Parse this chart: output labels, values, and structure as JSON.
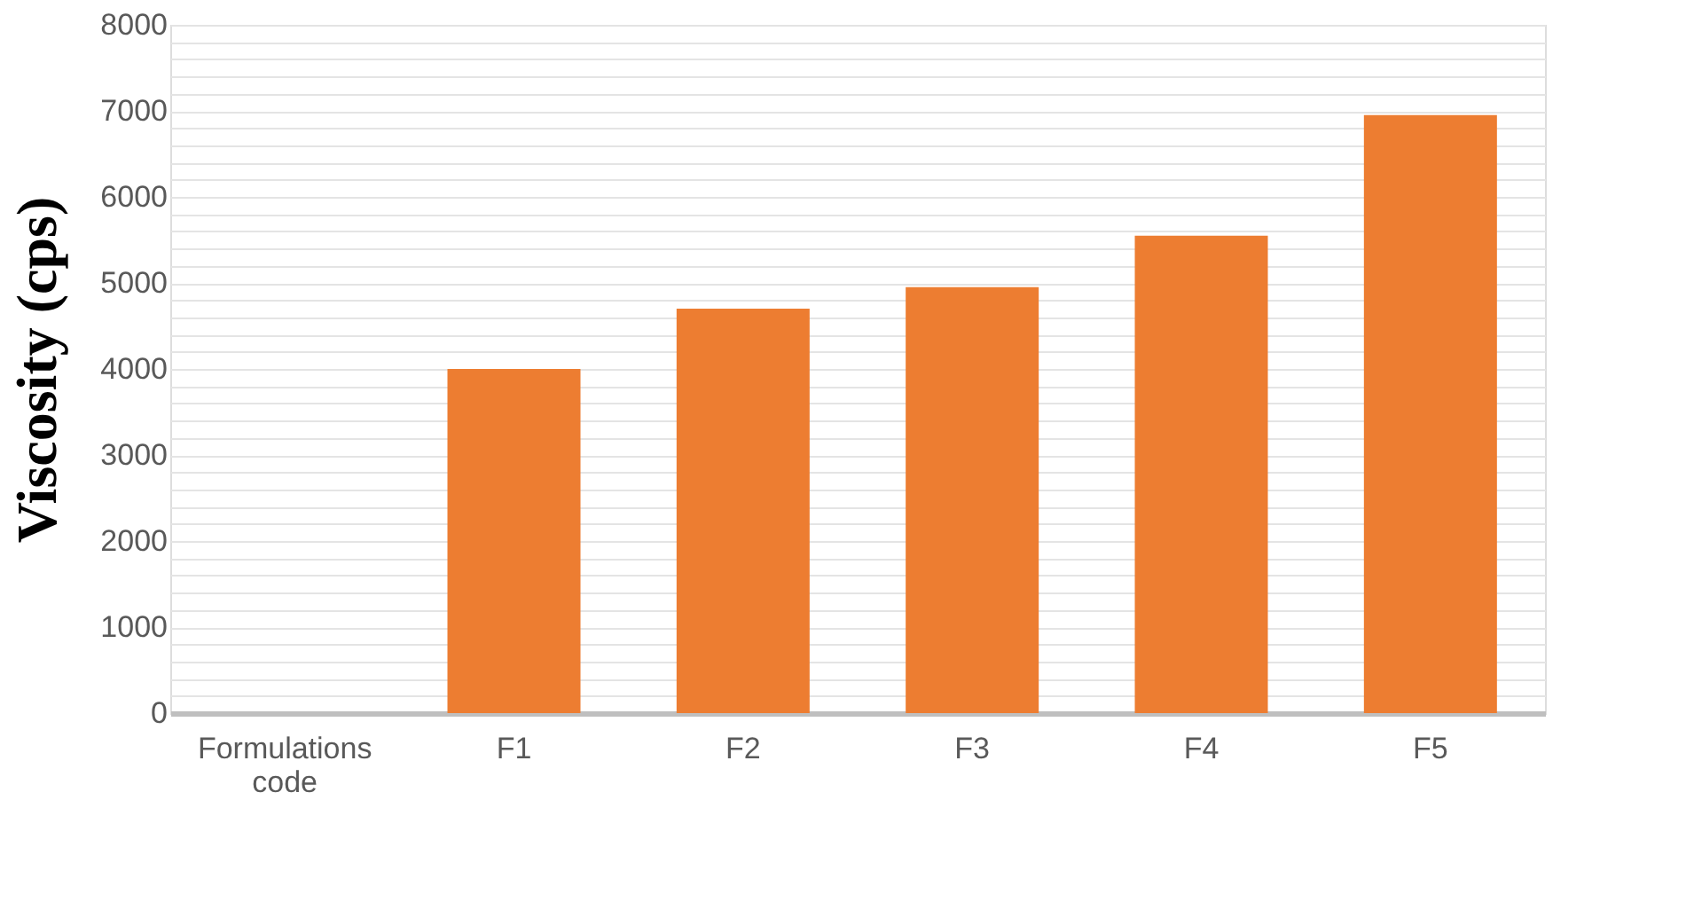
{
  "chart_data": {
    "type": "bar",
    "ylabel": "Viscosity (cps)",
    "categories": [
      "Formulations code",
      "F1",
      "F2",
      "F3",
      "F4",
      "F5"
    ],
    "values": [
      null,
      4000,
      4700,
      4950,
      5550,
      6950
    ],
    "color": "#ed7d31",
    "ylim": [
      0,
      8000
    ],
    "yticks": [
      0,
      {
        "value": 200,
        "label": null
      },
      {
        "value": 400,
        "label": null
      },
      {
        "value": 600,
        "label": null
      },
      {
        "value": 800,
        "label": null
      },
      1000,
      {
        "value": 1200,
        "label": null
      },
      {
        "value": 1400,
        "label": null
      },
      {
        "value": 1600,
        "label": null
      },
      {
        "value": 1800,
        "label": null
      },
      2000,
      {
        "value": 2200,
        "label": null
      },
      {
        "value": 2400,
        "label": null
      },
      {
        "value": 2600,
        "label": null
      },
      {
        "value": 2800,
        "label": null
      },
      3000,
      {
        "value": 3200,
        "label": null
      },
      {
        "value": 3400,
        "label": null
      },
      {
        "value": 3600,
        "label": null
      },
      {
        "value": 3800,
        "label": null
      },
      4000,
      {
        "value": 4200,
        "label": null
      },
      {
        "value": 4400,
        "label": null
      },
      {
        "value": 4600,
        "label": null
      },
      {
        "value": 4800,
        "label": null
      },
      5000,
      {
        "value": 5200,
        "label": null
      },
      {
        "value": 5400,
        "label": null
      },
      {
        "value": 5600,
        "label": null
      },
      {
        "value": 5800,
        "label": null
      },
      6000,
      {
        "value": 6200,
        "label": null
      },
      {
        "value": 6400,
        "label": null
      },
      {
        "value": 6600,
        "label": null
      },
      {
        "value": 6800,
        "label": null
      },
      7000,
      {
        "value": 7200,
        "label": null
      },
      {
        "value": 7400,
        "label": null
      },
      {
        "value": 7600,
        "label": null
      },
      {
        "value": 7800,
        "label": null
      },
      8000
    ],
    "grid": true
  }
}
